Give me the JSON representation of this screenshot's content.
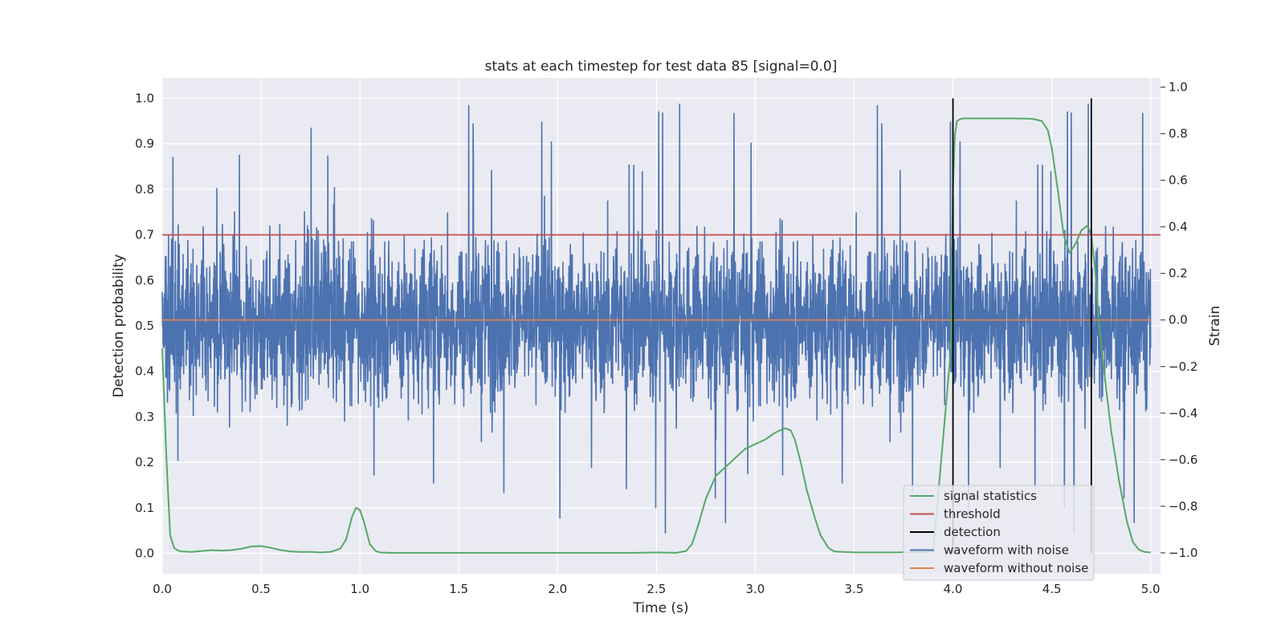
{
  "chart_data": {
    "type": "line",
    "title": "stats at each timestep for test data 85 [signal=0.0]",
    "xlabel": "Time (s)",
    "ylabel_left": "Detection probability",
    "ylabel_right": "Strain",
    "xlim": [
      0.0,
      5.05
    ],
    "ylim_left": [
      -0.045,
      1.045
    ],
    "ylim_right": [
      -1.09,
      1.04
    ],
    "x_ticks": [
      "0.0",
      "0.5",
      "1.0",
      "1.5",
      "2.0",
      "2.5",
      "3.0",
      "3.5",
      "4.0",
      "4.5",
      "5.0"
    ],
    "y_left_ticks": [
      "0.0",
      "0.1",
      "0.2",
      "0.3",
      "0.4",
      "0.5",
      "0.6",
      "0.7",
      "0.8",
      "0.9",
      "1.0"
    ],
    "y_right_ticks": [
      "−1.0",
      "−0.8",
      "−0.6",
      "−0.4",
      "−0.2",
      "0.0",
      "0.2",
      "0.4",
      "0.6",
      "0.8",
      "1.0"
    ],
    "grid": true,
    "legend_position": "lower-right",
    "colors": {
      "background": "#eaeaf2",
      "grid": "#ffffff",
      "signal_statistics": "#55a868",
      "threshold": "#c44e52",
      "detection": "#000000",
      "waveform_with_noise": "#4c72b0",
      "waveform_without_noise": "#dd8452"
    },
    "series": [
      {
        "name": "signal statistics",
        "axis": "left",
        "x": [
          0.0,
          0.02,
          0.04,
          0.06,
          0.08,
          0.1,
          0.15,
          0.2,
          0.25,
          0.3,
          0.35,
          0.4,
          0.45,
          0.5,
          0.55,
          0.6,
          0.65,
          0.7,
          0.75,
          0.8,
          0.85,
          0.9,
          0.93,
          0.96,
          0.98,
          1.0,
          1.02,
          1.05,
          1.08,
          1.1,
          1.15,
          1.2,
          1.5,
          2.0,
          2.4,
          2.5,
          2.6,
          2.65,
          2.68,
          2.71,
          2.75,
          2.8,
          2.85,
          2.9,
          2.95,
          3.0,
          3.05,
          3.1,
          3.15,
          3.18,
          3.2,
          3.23,
          3.26,
          3.3,
          3.33,
          3.37,
          3.4,
          3.5,
          3.7,
          3.9,
          3.99,
          4.0,
          4.01,
          4.02,
          4.04,
          4.06,
          4.1,
          4.2,
          4.3,
          4.4,
          4.45,
          4.48,
          4.5,
          4.53,
          4.56,
          4.59,
          4.62,
          4.65,
          4.68,
          4.7,
          4.72,
          4.74,
          4.77,
          4.8,
          4.84,
          4.88,
          4.91,
          4.94,
          4.97,
          5.0
        ],
        "values": [
          0.45,
          0.22,
          0.04,
          0.012,
          0.006,
          0.004,
          0.003,
          0.005,
          0.007,
          0.006,
          0.007,
          0.01,
          0.015,
          0.016,
          0.012,
          0.007,
          0.004,
          0.003,
          0.003,
          0.002,
          0.003,
          0.01,
          0.03,
          0.08,
          0.1,
          0.095,
          0.07,
          0.02,
          0.005,
          0.002,
          0.001,
          0.001,
          0.001,
          0.001,
          0.001,
          0.002,
          0.001,
          0.005,
          0.02,
          0.06,
          0.12,
          0.17,
          0.19,
          0.21,
          0.23,
          0.24,
          0.25,
          0.265,
          0.275,
          0.27,
          0.25,
          0.2,
          0.14,
          0.08,
          0.04,
          0.012,
          0.004,
          0.002,
          0.002,
          0.003,
          0.45,
          0.8,
          0.92,
          0.95,
          0.955,
          0.956,
          0.956,
          0.956,
          0.956,
          0.955,
          0.95,
          0.93,
          0.89,
          0.8,
          0.7,
          0.66,
          0.68,
          0.71,
          0.72,
          0.7,
          0.62,
          0.5,
          0.38,
          0.27,
          0.16,
          0.07,
          0.025,
          0.008,
          0.003,
          0.002
        ]
      },
      {
        "name": "threshold",
        "axis": "left",
        "value": 0.7
      },
      {
        "name": "detection",
        "axis": "left",
        "x": [
          4.0,
          4.7
        ],
        "range": [
          0.0,
          1.0
        ]
      },
      {
        "name": "waveform with noise",
        "axis": "right",
        "x_range": [
          0.0,
          5.0
        ],
        "envelope_max": 1.0,
        "envelope_min": -1.0
      },
      {
        "name": "waveform without noise",
        "axis": "right",
        "value": 0.0
      }
    ]
  }
}
